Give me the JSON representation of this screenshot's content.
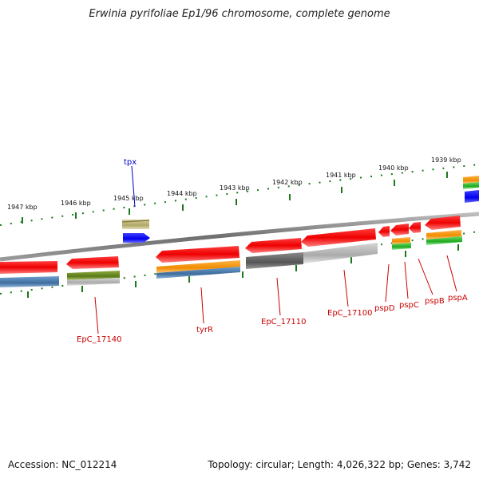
{
  "title": "Erwinia pyrifoliae Ep1/96 chromosome, complete genome",
  "footer": {
    "accession": "Accession: NC_012214",
    "summary": "Topology: circular; Length: 4,026,322 bp; Genes: 3,742"
  },
  "ruler_labels": [
    "1947 kbp",
    "1946 kbp",
    "1945 kbp",
    "1944 kbp",
    "1943 kbp",
    "1942 kbp",
    "1941 kbp",
    "1940 kbp",
    "1939 kbp"
  ],
  "gene_labels": [
    {
      "text": "tpx",
      "color": "#0000cc"
    },
    {
      "text": "EpC_17140",
      "color": "#cc0000"
    },
    {
      "text": "tyrR",
      "color": "#cc0000"
    },
    {
      "text": "EpC_17110",
      "color": "#cc0000"
    },
    {
      "text": "EpC_17100",
      "color": "#cc0000"
    },
    {
      "text": "pspD",
      "color": "#cc0000"
    },
    {
      "text": "pspC",
      "color": "#cc0000"
    },
    {
      "text": "pspB",
      "color": "#cc0000"
    },
    {
      "text": "pspA",
      "color": "#cc0000"
    }
  ],
  "colors": {
    "gene_red": "#ff1a1a",
    "backbone": "#8a8a8a",
    "ruler_green": "#1a7a1a",
    "blue": "#0000ff",
    "steel": "#4a7fb5",
    "orange": "#ff9900",
    "olive": "#6b8e23",
    "khaki": "#c8c080",
    "green": "#33cc33"
  }
}
